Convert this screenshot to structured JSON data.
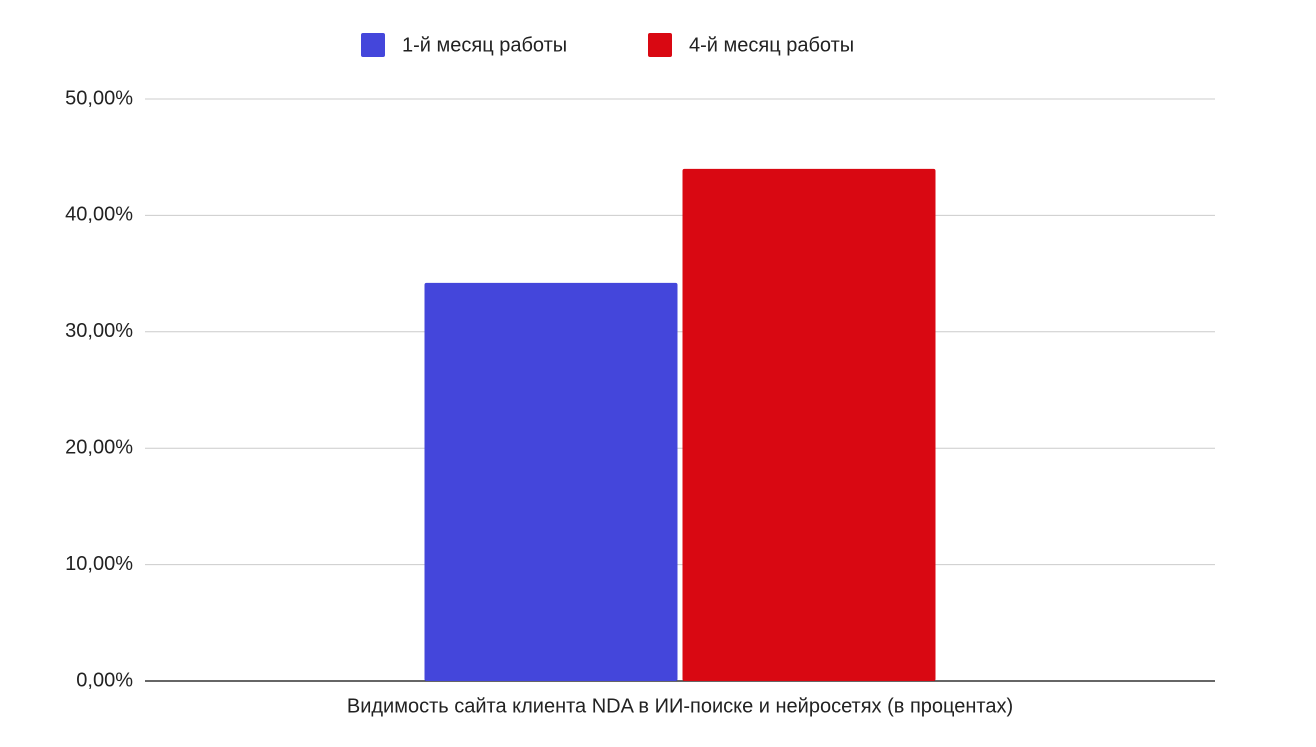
{
  "chart_data": {
    "type": "bar",
    "categories": [
      "Видимость сайта клиента NDA в ИИ-поиске и нейросетях (в процентах)"
    ],
    "series": [
      {
        "name": "1-й месяц работы",
        "color": "#4446db",
        "values": [
          34.2
        ]
      },
      {
        "name": "4-й месяц работы",
        "color": "#d90812",
        "values": [
          44.0
        ]
      }
    ],
    "ylim": [
      0,
      50
    ],
    "yticks": [
      {
        "value": 0,
        "label": "0,00%"
      },
      {
        "value": 10,
        "label": "10,00%"
      },
      {
        "value": 20,
        "label": "20,00%"
      },
      {
        "value": 30,
        "label": "30,00%"
      },
      {
        "value": 40,
        "label": "40,00%"
      },
      {
        "value": 50,
        "label": "50,00%"
      }
    ],
    "grid": true,
    "legend": "top"
  }
}
